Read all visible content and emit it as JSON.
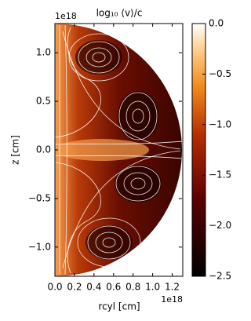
{
  "chart_data": {
    "type": "image",
    "title": "log₁₀ ⟨v⟩/c",
    "xlabel": "rcyl [cm]",
    "ylabel": "z [cm]",
    "x_offset_text": "1e18",
    "y_offset_text": "1e18",
    "xlim": [
      0,
      1.3
    ],
    "ylim": [
      -1.3,
      1.3
    ],
    "xticks": [
      {
        "value": 0,
        "label": "0.0"
      },
      {
        "value": 0.2,
        "label": "0.2"
      },
      {
        "value": 0.4,
        "label": "0.4"
      },
      {
        "value": 0.6,
        "label": "0.6"
      },
      {
        "value": 0.8,
        "label": "0.8"
      },
      {
        "value": 1.0,
        "label": "1.0"
      },
      {
        "value": 1.2,
        "label": "1.2"
      }
    ],
    "yticks": [
      {
        "value": -1.0,
        "label": "−1.0"
      },
      {
        "value": -0.5,
        "label": "−0.5"
      },
      {
        "value": 0,
        "label": "0.0"
      },
      {
        "value": 0.5,
        "label": "0.5"
      },
      {
        "value": 1.0,
        "label": "1.0"
      }
    ],
    "colorbar": {
      "lim": [
        -2.5,
        0
      ],
      "ticks": [
        {
          "value": 0,
          "label": "0.0"
        },
        {
          "value": -0.5,
          "label": "−0.5"
        },
        {
          "value": -1.0,
          "label": "−1.0"
        },
        {
          "value": -1.5,
          "label": "−1.5"
        },
        {
          "value": -2.0,
          "label": "−2.0"
        },
        {
          "value": -2.5,
          "label": "−2.5"
        }
      ]
    }
  }
}
